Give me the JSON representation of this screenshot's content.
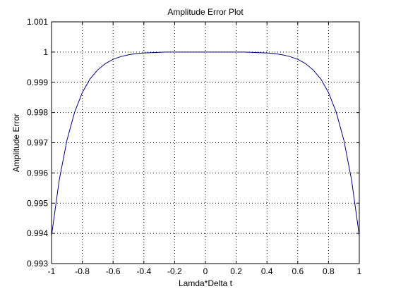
{
  "chart_data": {
    "type": "line",
    "title": "Amplitude Error Plot",
    "xlabel": "Lamda*Delta t",
    "ylabel": "Amplitude Error",
    "xlim": [
      -1,
      1
    ],
    "ylim": [
      0.993,
      1.001
    ],
    "xticks": [
      -1,
      -0.8,
      -0.6,
      -0.4,
      -0.2,
      0,
      0.2,
      0.4,
      0.6,
      0.8,
      1
    ],
    "xtick_labels": [
      "-1",
      "-0.8",
      "-0.6",
      "-0.4",
      "-0.2",
      "0",
      "0.2",
      "0.4",
      "0.6",
      "0.8",
      "1"
    ],
    "yticks": [
      0.993,
      0.994,
      0.995,
      0.996,
      0.997,
      0.998,
      0.999,
      1,
      1.001
    ],
    "ytick_labels": [
      "0.993",
      "0.994",
      "0.995",
      "0.996",
      "0.997",
      "0.998",
      "0.999",
      "1",
      "1.001"
    ],
    "grid": true,
    "line_color": "#00007f",
    "series": [
      {
        "x": [
          -1.0,
          -0.95,
          -0.9,
          -0.85,
          -0.8,
          -0.75,
          -0.7,
          -0.65,
          -0.6,
          -0.55,
          -0.5,
          -0.45,
          -0.4,
          -0.35,
          -0.3,
          -0.25,
          -0.2,
          -0.15,
          -0.1,
          -0.05,
          0.0,
          0.05,
          0.1,
          0.15,
          0.2,
          0.25,
          0.3,
          0.35,
          0.4,
          0.45,
          0.5,
          0.55,
          0.6,
          0.65,
          0.7,
          0.75,
          0.8,
          0.85,
          0.9,
          0.95,
          1.0
        ],
        "y": [
          0.99392,
          0.99576,
          0.99708,
          0.99801,
          0.99866,
          0.99911,
          0.99941,
          0.99962,
          0.99976,
          0.99985,
          0.99991,
          0.99995,
          0.99997,
          0.99998,
          0.99999,
          1.0,
          1.0,
          1.0,
          1.0,
          1.0,
          1.0,
          1.0,
          1.0,
          1.0,
          1.0,
          1.0,
          0.99999,
          0.99998,
          0.99997,
          0.99995,
          0.99991,
          0.99985,
          0.99976,
          0.99962,
          0.99941,
          0.99911,
          0.99866,
          0.99801,
          0.99708,
          0.99576,
          0.99392
        ]
      }
    ]
  }
}
